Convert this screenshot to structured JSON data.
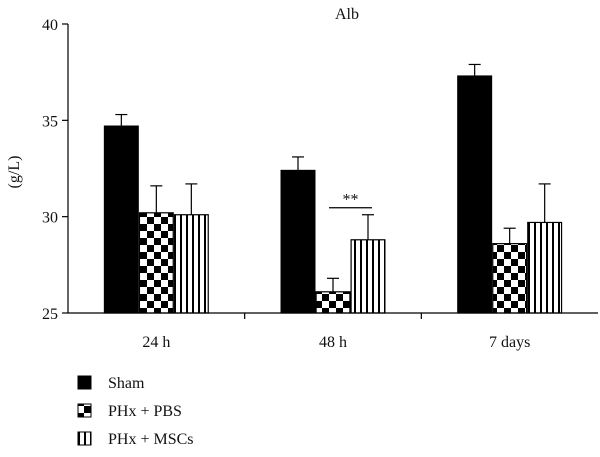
{
  "chart_data": {
    "type": "bar",
    "title": "Alb",
    "ylabel": "(g/L)",
    "xlabel": "",
    "ylim": [
      25,
      40
    ],
    "yticks": [
      25,
      30,
      35,
      40
    ],
    "categories": [
      "24 h",
      "48 h",
      "7 days"
    ],
    "series": [
      {
        "name": "Sham",
        "pattern": "solid",
        "values": [
          34.7,
          32.4,
          37.3
        ],
        "errors": [
          0.6,
          0.7,
          0.6
        ]
      },
      {
        "name": "PHx + PBS",
        "pattern": "checker",
        "values": [
          30.2,
          26.1,
          28.6
        ],
        "errors": [
          1.4,
          0.7,
          0.8
        ]
      },
      {
        "name": "PHx + MSCs",
        "pattern": "vertical-stripes",
        "values": [
          30.1,
          28.8,
          29.7
        ],
        "errors": [
          1.6,
          1.3,
          2.0
        ]
      }
    ],
    "annotations": [
      {
        "text": "**",
        "category": "48 h",
        "between": [
          "PHx + PBS",
          "PHx + MSCs"
        ]
      }
    ],
    "legend_position": "bottom-left",
    "grid": false,
    "colors": {
      "bar": "#000000",
      "background": "#ffffff"
    }
  }
}
